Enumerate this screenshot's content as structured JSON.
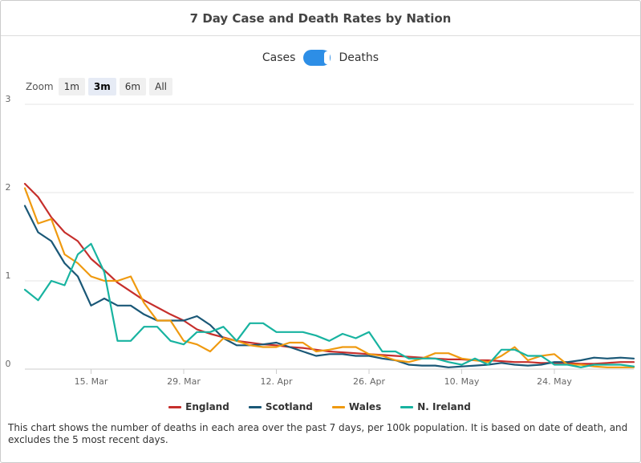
{
  "header": {
    "title": "7 Day Case and Death Rates by Nation"
  },
  "toggle": {
    "left_label": "Cases",
    "right_label": "Deaths",
    "selected": "Deaths",
    "color": "#2d8ee6"
  },
  "zoom": {
    "label": "Zoom",
    "buttons": [
      "1m",
      "3m",
      "6m",
      "All"
    ],
    "active": "3m"
  },
  "footnote": "This chart shows the number of deaths in each area over the past 7 days, per 100k population. It is based on date of death, and excludes the 5 most recent days.",
  "chart_data": {
    "type": "line",
    "title": "7 Day Case and Death Rates by Nation",
    "xlabel": "",
    "ylabel": "",
    "ylim": [
      0,
      3
    ],
    "y_ticks": [
      "0",
      "1",
      "2",
      "3"
    ],
    "x_range": [
      "5 Mar",
      "6 Jun"
    ],
    "x_ticks": [
      "15. Mar",
      "29. Mar",
      "12. Apr",
      "26. Apr",
      "10. May",
      "24. May"
    ],
    "x_tick_days": [
      10,
      24,
      38,
      52,
      66,
      80
    ],
    "grid": true,
    "legend_position": "bottom",
    "x": [
      0,
      2,
      4,
      6,
      8,
      10,
      12,
      14,
      16,
      18,
      20,
      22,
      24,
      26,
      28,
      30,
      32,
      34,
      36,
      38,
      40,
      42,
      44,
      46,
      48,
      50,
      52,
      54,
      56,
      58,
      60,
      62,
      64,
      66,
      68,
      70,
      72,
      74,
      76,
      78,
      80,
      82,
      84,
      86,
      88,
      90,
      92
    ],
    "series": [
      {
        "name": "England",
        "color": "#c62f2c",
        "values": [
          2.1,
          1.95,
          1.72,
          1.55,
          1.45,
          1.25,
          1.12,
          0.98,
          0.88,
          0.78,
          0.7,
          0.62,
          0.55,
          0.45,
          0.4,
          0.36,
          0.32,
          0.3,
          0.28,
          0.27,
          0.25,
          0.24,
          0.22,
          0.2,
          0.19,
          0.18,
          0.17,
          0.16,
          0.15,
          0.14,
          0.13,
          0.12,
          0.11,
          0.11,
          0.1,
          0.1,
          0.09,
          0.08,
          0.08,
          0.07,
          0.07,
          0.07,
          0.06,
          0.06,
          0.07,
          0.08,
          0.08
        ]
      },
      {
        "name": "Scotland",
        "color": "#1a5877",
        "values": [
          1.85,
          1.55,
          1.45,
          1.2,
          1.05,
          0.72,
          0.8,
          0.72,
          0.72,
          0.62,
          0.55,
          0.55,
          0.55,
          0.6,
          0.5,
          0.35,
          0.27,
          0.27,
          0.28,
          0.3,
          0.25,
          0.2,
          0.15,
          0.17,
          0.17,
          0.15,
          0.15,
          0.12,
          0.1,
          0.05,
          0.04,
          0.04,
          0.02,
          0.03,
          0.04,
          0.05,
          0.07,
          0.05,
          0.04,
          0.05,
          0.08,
          0.08,
          0.1,
          0.13,
          0.12,
          0.13,
          0.12
        ]
      },
      {
        "name": "Wales",
        "color": "#ef9a10",
        "values": [
          2.05,
          1.65,
          1.7,
          1.3,
          1.2,
          1.05,
          1.0,
          1.0,
          1.05,
          0.75,
          0.55,
          0.55,
          0.32,
          0.28,
          0.2,
          0.35,
          0.32,
          0.27,
          0.25,
          0.25,
          0.3,
          0.3,
          0.2,
          0.22,
          0.25,
          0.25,
          0.17,
          0.15,
          0.1,
          0.08,
          0.12,
          0.18,
          0.18,
          0.12,
          0.1,
          0.08,
          0.15,
          0.25,
          0.1,
          0.15,
          0.17,
          0.05,
          0.05,
          0.03,
          0.02,
          0.02,
          0.02
        ]
      },
      {
        "name": "N. Ireland",
        "color": "#18b3a0",
        "values": [
          0.9,
          0.78,
          1.0,
          0.95,
          1.3,
          1.42,
          1.1,
          0.32,
          0.32,
          0.48,
          0.48,
          0.32,
          0.28,
          0.42,
          0.42,
          0.48,
          0.32,
          0.52,
          0.52,
          0.42,
          0.42,
          0.42,
          0.38,
          0.32,
          0.4,
          0.35,
          0.42,
          0.2,
          0.2,
          0.12,
          0.12,
          0.12,
          0.08,
          0.05,
          0.12,
          0.05,
          0.22,
          0.22,
          0.15,
          0.15,
          0.05,
          0.05,
          0.02,
          0.05,
          0.05,
          0.05,
          0.03
        ]
      }
    ]
  }
}
